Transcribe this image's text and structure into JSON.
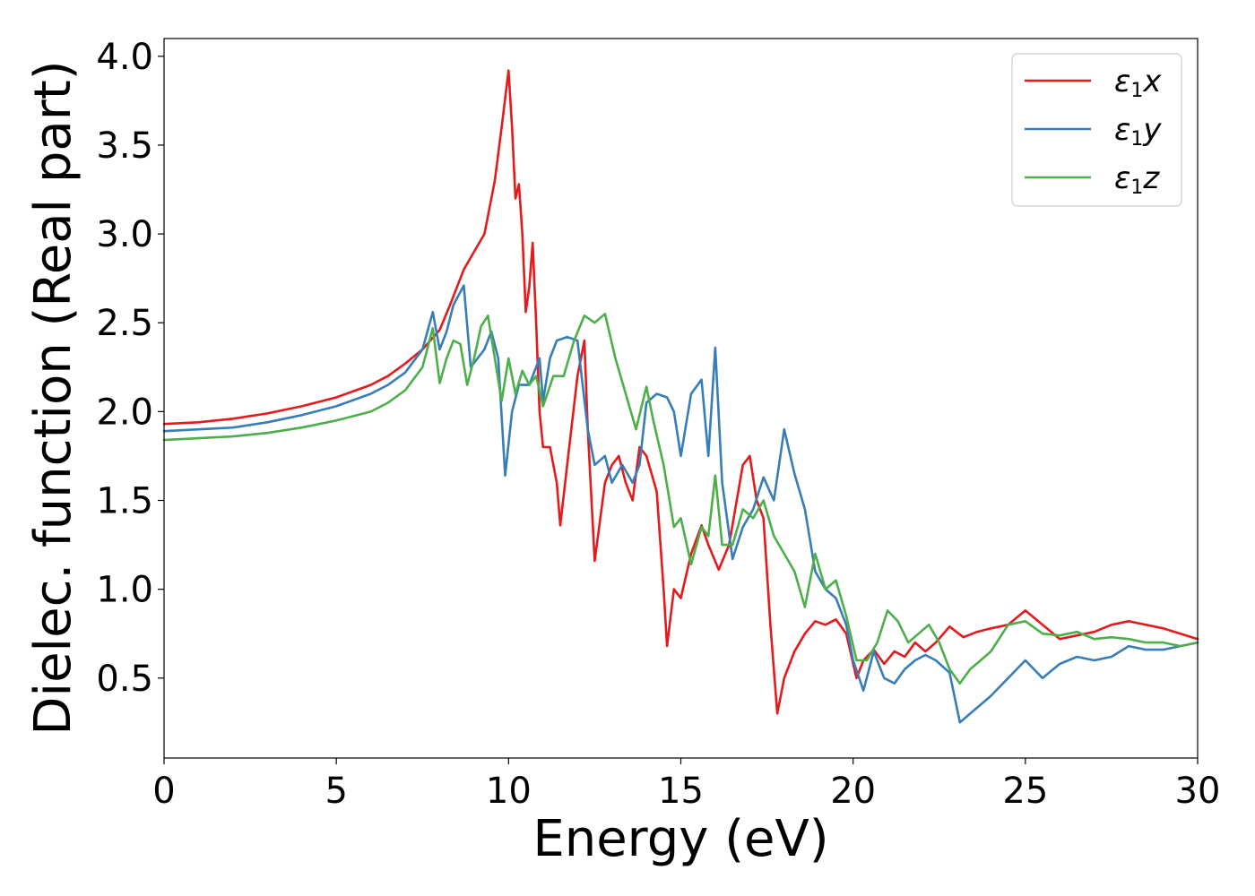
{
  "chart_data": {
    "type": "line",
    "xlabel": "Energy (eV)",
    "ylabel": "Dielec. function (Real part)",
    "xlim": [
      0,
      30
    ],
    "ylim": [
      0.05,
      4.1
    ],
    "xticks": [
      0,
      5,
      10,
      15,
      20,
      25,
      30
    ],
    "xtick_labels": [
      "0",
      "5",
      "10",
      "15",
      "20",
      "25",
      "30"
    ],
    "yticks": [
      0.5,
      1.0,
      1.5,
      2.0,
      2.5,
      3.0,
      3.5,
      4.0
    ],
    "ytick_labels": [
      "0.5",
      "1.0",
      "1.5",
      "2.0",
      "2.5",
      "3.0",
      "3.5",
      "4.0"
    ],
    "grid": false,
    "legend_position": "top-right",
    "series": [
      {
        "name": "ε1x",
        "legend": {
          "base": "ε",
          "sub": "1",
          "tail": "x"
        },
        "color": "#e41a1c",
        "x": [
          0,
          1,
          2,
          3,
          4,
          5,
          6,
          6.5,
          7,
          7.5,
          8,
          8.3,
          8.7,
          9.0,
          9.3,
          9.6,
          9.8,
          10.0,
          10.1,
          10.2,
          10.3,
          10.4,
          10.5,
          10.6,
          10.7,
          10.8,
          10.9,
          11.0,
          11.2,
          11.4,
          11.5,
          11.7,
          12.0,
          12.2,
          12.3,
          12.5,
          12.8,
          13.0,
          13.2,
          13.4,
          13.6,
          13.8,
          14.0,
          14.3,
          14.5,
          14.6,
          14.8,
          15.0,
          15.3,
          15.6,
          15.8,
          16.1,
          16.4,
          16.8,
          17.0,
          17.2,
          17.4,
          17.6,
          17.8,
          18.0,
          18.3,
          18.6,
          18.9,
          19.2,
          19.5,
          19.8,
          20.1,
          20.3,
          20.6,
          20.9,
          21.2,
          21.5,
          21.8,
          22.1,
          22.4,
          22.8,
          23.2,
          23.6,
          24.0,
          24.5,
          25.0,
          25.5,
          26.0,
          26.5,
          27.0,
          27.5,
          28.0,
          28.5,
          29.0,
          29.5,
          30.0
        ],
        "y": [
          1.93,
          1.94,
          1.96,
          1.99,
          2.03,
          2.08,
          2.15,
          2.2,
          2.27,
          2.35,
          2.46,
          2.6,
          2.8,
          2.9,
          3.0,
          3.3,
          3.6,
          3.92,
          3.6,
          3.2,
          3.28,
          3.0,
          2.56,
          2.7,
          2.95,
          2.5,
          2.0,
          1.8,
          1.8,
          1.6,
          1.36,
          1.7,
          2.2,
          2.4,
          1.9,
          1.16,
          1.6,
          1.7,
          1.75,
          1.6,
          1.5,
          1.8,
          1.75,
          1.55,
          1.0,
          0.68,
          1.0,
          0.95,
          1.2,
          1.36,
          1.25,
          1.11,
          1.25,
          1.7,
          1.75,
          1.5,
          1.4,
          0.8,
          0.3,
          0.5,
          0.65,
          0.75,
          0.82,
          0.8,
          0.83,
          0.75,
          0.5,
          0.6,
          0.66,
          0.58,
          0.65,
          0.62,
          0.7,
          0.65,
          0.7,
          0.79,
          0.73,
          0.76,
          0.78,
          0.8,
          0.88,
          0.8,
          0.72,
          0.74,
          0.76,
          0.8,
          0.82,
          0.8,
          0.78,
          0.75,
          0.72
        ]
      },
      {
        "name": "ε1y",
        "legend": {
          "base": "ε",
          "sub": "1",
          "tail": "y"
        },
        "color": "#377eb8",
        "x": [
          0,
          1,
          2,
          3,
          4,
          5,
          6,
          6.5,
          7,
          7.5,
          7.8,
          8.0,
          8.2,
          8.4,
          8.7,
          8.9,
          9.1,
          9.3,
          9.5,
          9.7,
          9.9,
          10.1,
          10.3,
          10.6,
          10.9,
          11.0,
          11.2,
          11.4,
          11.7,
          12.0,
          12.3,
          12.5,
          12.8,
          13.0,
          13.3,
          13.6,
          13.8,
          14.0,
          14.3,
          14.6,
          14.8,
          15.0,
          15.3,
          15.6,
          15.8,
          16.0,
          16.2,
          16.5,
          16.8,
          17.1,
          17.4,
          17.7,
          18.0,
          18.3,
          18.6,
          18.9,
          19.2,
          19.5,
          19.8,
          20.0,
          20.3,
          20.6,
          20.9,
          21.2,
          21.5,
          21.8,
          22.1,
          22.4,
          22.8,
          23.1,
          23.4,
          23.7,
          24.0,
          24.5,
          25.0,
          25.5,
          26.0,
          26.5,
          27.0,
          27.5,
          28.0,
          28.5,
          29.0,
          29.5,
          30.0
        ],
        "y": [
          1.89,
          1.9,
          1.91,
          1.94,
          1.98,
          2.03,
          2.1,
          2.15,
          2.22,
          2.35,
          2.56,
          2.35,
          2.45,
          2.6,
          2.71,
          2.25,
          2.3,
          2.35,
          2.45,
          2.3,
          1.64,
          2.0,
          2.15,
          2.15,
          2.3,
          2.06,
          2.3,
          2.4,
          2.42,
          2.4,
          1.9,
          1.7,
          1.75,
          1.6,
          1.7,
          1.6,
          1.7,
          2.05,
          2.1,
          2.08,
          2.0,
          1.75,
          2.1,
          2.18,
          1.75,
          2.36,
          1.6,
          1.17,
          1.35,
          1.45,
          1.63,
          1.5,
          1.9,
          1.65,
          1.45,
          1.1,
          1.0,
          0.95,
          0.8,
          0.6,
          0.43,
          0.65,
          0.5,
          0.47,
          0.55,
          0.6,
          0.63,
          0.6,
          0.53,
          0.25,
          0.3,
          0.35,
          0.4,
          0.5,
          0.6,
          0.5,
          0.58,
          0.62,
          0.6,
          0.62,
          0.68,
          0.66,
          0.66,
          0.68,
          0.7
        ]
      },
      {
        "name": "ε1z",
        "legend": {
          "base": "ε",
          "sub": "1",
          "tail": "z"
        },
        "color": "#4daf4a",
        "x": [
          0,
          1,
          2,
          3,
          4,
          5,
          6,
          6.5,
          7,
          7.5,
          7.8,
          8.0,
          8.2,
          8.4,
          8.6,
          8.8,
          9.0,
          9.2,
          9.4,
          9.6,
          9.8,
          10.0,
          10.2,
          10.4,
          10.6,
          10.8,
          11.0,
          11.3,
          11.6,
          11.9,
          12.2,
          12.5,
          12.8,
          13.1,
          13.4,
          13.7,
          14.0,
          14.2,
          14.5,
          14.8,
          15.0,
          15.3,
          15.6,
          15.8,
          16.0,
          16.2,
          16.5,
          16.8,
          17.1,
          17.4,
          17.7,
          18.0,
          18.3,
          18.6,
          18.9,
          19.2,
          19.5,
          19.8,
          20.1,
          20.4,
          20.7,
          21.0,
          21.3,
          21.6,
          21.9,
          22.2,
          22.5,
          22.8,
          23.1,
          23.4,
          23.7,
          24.0,
          24.5,
          25.0,
          25.5,
          26.0,
          26.5,
          27.0,
          27.5,
          28.0,
          28.5,
          29.0,
          29.5,
          30.0
        ],
        "y": [
          1.84,
          1.85,
          1.86,
          1.88,
          1.91,
          1.95,
          2.0,
          2.05,
          2.12,
          2.25,
          2.47,
          2.16,
          2.3,
          2.4,
          2.38,
          2.15,
          2.3,
          2.48,
          2.54,
          2.3,
          2.06,
          2.3,
          2.1,
          2.23,
          2.15,
          2.2,
          2.03,
          2.2,
          2.2,
          2.4,
          2.54,
          2.5,
          2.55,
          2.3,
          2.1,
          1.9,
          2.14,
          1.95,
          1.7,
          1.35,
          1.4,
          1.14,
          1.35,
          1.3,
          1.64,
          1.25,
          1.25,
          1.45,
          1.4,
          1.5,
          1.3,
          1.2,
          1.1,
          0.9,
          1.2,
          1.0,
          1.05,
          0.85,
          0.6,
          0.6,
          0.7,
          0.88,
          0.82,
          0.7,
          0.75,
          0.8,
          0.7,
          0.55,
          0.47,
          0.55,
          0.6,
          0.65,
          0.8,
          0.82,
          0.75,
          0.74,
          0.76,
          0.72,
          0.73,
          0.72,
          0.7,
          0.7,
          0.68,
          0.7
        ]
      }
    ]
  }
}
